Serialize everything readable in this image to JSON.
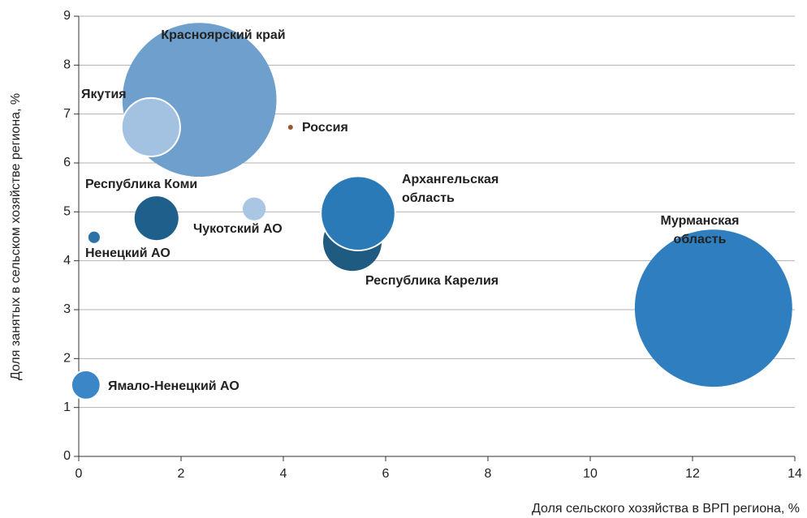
{
  "chart_data": {
    "type": "bubble",
    "xlabel": "Доля сельского хозяйства в ВРП региона, %",
    "ylabel": "Доля занятых в сельском хозяйстве региона, %",
    "xlim": [
      0,
      14
    ],
    "xticks": [
      0,
      2,
      4,
      6,
      8,
      10,
      12,
      14
    ],
    "ylim": [
      0,
      9
    ],
    "yticks": [
      0,
      1,
      2,
      3,
      4,
      5,
      6,
      7,
      8,
      9
    ],
    "grid": true,
    "labels": [
      [
        "Красноярский край"
      ],
      [
        "Якутия"
      ],
      [
        "Россия"
      ],
      [
        "Республика Коми"
      ],
      [
        "Чукотский АО"
      ],
      [
        "Ненецкий АО"
      ],
      [
        "Республика Карелия"
      ],
      [
        "Архангельская",
        "область"
      ],
      [
        "Мурманская",
        "область"
      ],
      [
        "Ямало-Ненецкий АО"
      ]
    ],
    "x": [
      2.36,
      1.41,
      4.14,
      1.52,
      3.43,
      0.3,
      5.35,
      5.46,
      12.41,
      0.14
    ],
    "y": [
      7.29,
      6.73,
      6.73,
      4.87,
      5.06,
      4.48,
      4.39,
      4.97,
      3.03,
      1.46
    ],
    "sizes": [
      90,
      13,
      0.16,
      7.3,
      2,
      0.5,
      13,
      21,
      94,
      3.2
    ],
    "colors": [
      "#6f9fcc",
      "#a3c2e2",
      "#a0522d",
      "#1f5f8b",
      "#a9c6e3",
      "#2b72a8",
      "#1f5a80",
      "#2a7ab8",
      "#2f7fc0",
      "#3a86c6"
    ]
  }
}
